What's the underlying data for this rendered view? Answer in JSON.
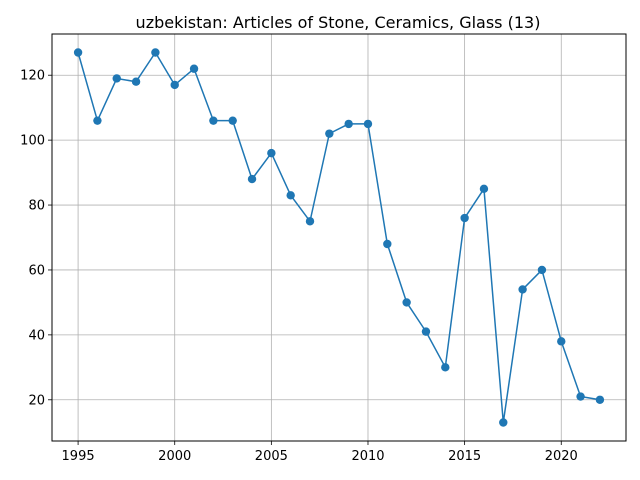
{
  "chart_data": {
    "type": "line",
    "title": "uzbekistan: Articles of Stone, Ceramics, Glass (13)",
    "xlabel": "",
    "ylabel": "",
    "x": [
      1995,
      1996,
      1997,
      1998,
      1999,
      2000,
      2001,
      2002,
      2003,
      2004,
      2005,
      2006,
      2007,
      2008,
      2009,
      2010,
      2011,
      2012,
      2013,
      2014,
      2015,
      2016,
      2017,
      2018,
      2019,
      2020,
      2021,
      2022
    ],
    "series": [
      {
        "values": [
          127,
          106,
          119,
          118,
          127,
          117,
          122,
          106,
          106,
          88,
          96,
          83,
          75,
          102,
          105,
          105,
          68,
          50,
          41,
          30,
          76,
          85,
          13,
          54,
          60,
          38,
          21,
          20
        ],
        "color": "#1f77b4"
      }
    ],
    "xlim": [
      1993.65,
      2023.35
    ],
    "ylim": [
      7.3,
      132.7
    ],
    "xticks": [
      1995,
      2000,
      2005,
      2010,
      2015,
      2020
    ],
    "yticks": [
      20,
      40,
      60,
      80,
      100,
      120
    ],
    "grid": true,
    "legend": "none"
  }
}
